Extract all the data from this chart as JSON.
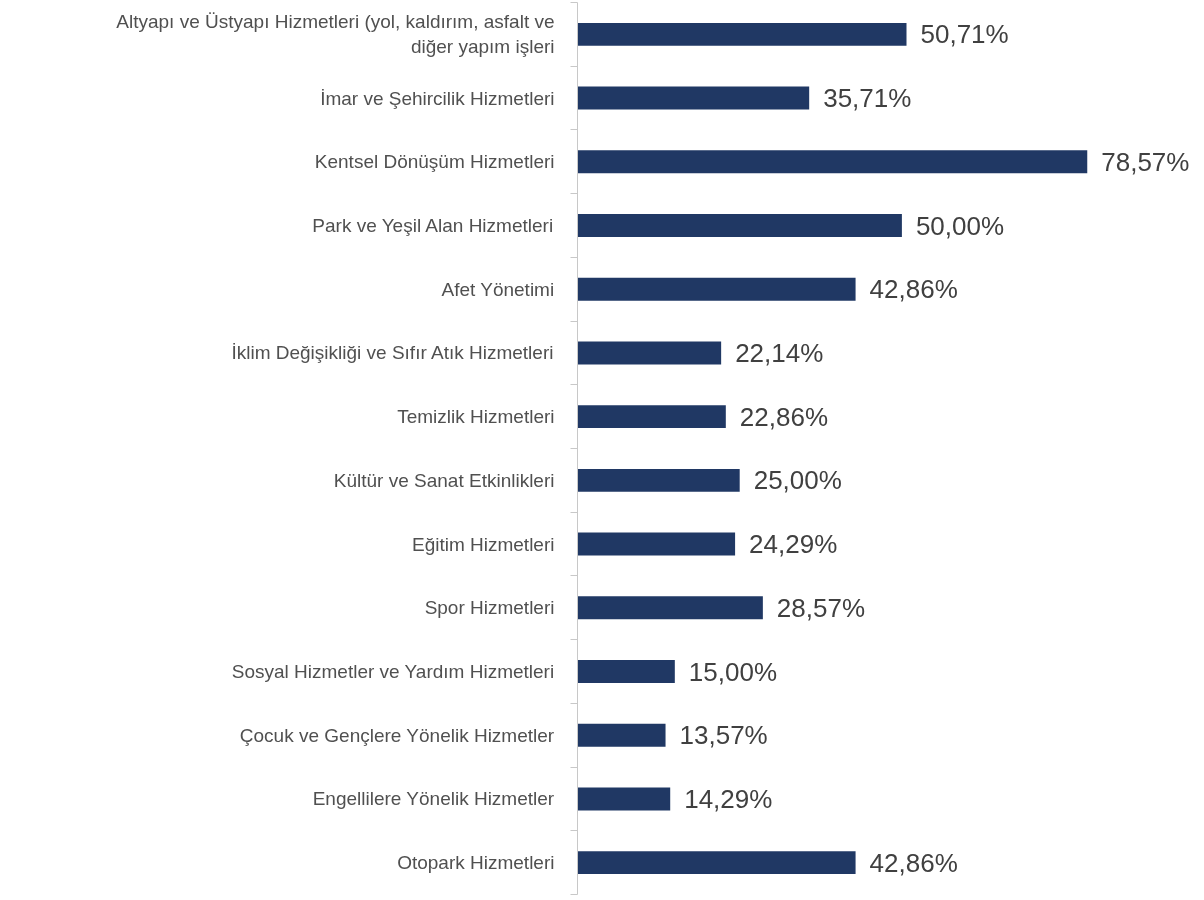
{
  "chart_data": {
    "type": "bar",
    "orientation": "horizontal",
    "categories": [
      "Altyapı ve Üstyapı Hizmetleri (yol, kaldırım, asfalt ve diğer yapım işleri",
      "İmar ve Şehircilik Hizmetleri",
      "Kentsel Dönüşüm Hizmetleri",
      "Park ve Yeşil Alan Hizmetleri",
      "Afet Yönetimi",
      "İklim Değişikliği ve Sıfır Atık Hizmetleri",
      "Temizlik Hizmetleri",
      "Kültür ve Sanat Etkinlikleri",
      "Eğitim Hizmetleri",
      "Spor Hizmetleri",
      "Sosyal Hizmetler ve Yardım Hizmetleri",
      "Çocuk ve Gençlere Yönelik Hizmetler",
      "Engellilere Yönelik Hizmetler",
      "Otopark Hizmetleri"
    ],
    "values": [
      50.71,
      35.71,
      78.57,
      50.0,
      42.86,
      22.14,
      22.86,
      25.0,
      24.29,
      28.57,
      15.0,
      13.57,
      14.29,
      42.86
    ],
    "value_labels": [
      "50,71%",
      "35,71%",
      "78,57%",
      "50,00%",
      "42,86%",
      "22,14%",
      "22,86%",
      "25,00%",
      "24,29%",
      "28,57%",
      "15,00%",
      "13,57%",
      "14,29%",
      "42,86%"
    ],
    "color": "#203864",
    "grid": false
  }
}
